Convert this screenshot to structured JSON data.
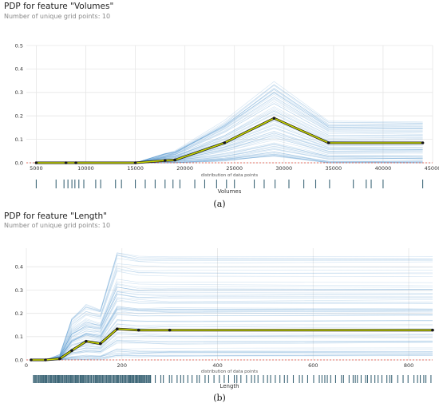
{
  "chart_data": [
    {
      "type": "line",
      "title": "PDP for feature \"Volumes\"",
      "subtitle": "Number of unique grid points: 10",
      "distribution_label": "distribution of data points",
      "xlabel": "Volumes",
      "caption": "(a)",
      "xlim": [
        4000,
        45000
      ],
      "ylim": [
        0,
        0.5
      ],
      "xticks": [
        5000,
        10000,
        15000,
        20000,
        25000,
        30000,
        35000,
        40000,
        45000
      ],
      "yticks": [
        0.0,
        0.1,
        0.2,
        0.3,
        0.4,
        0.5
      ],
      "grid": true,
      "zero_line": true,
      "series": [
        {
          "x": [
            5000,
            8000,
            9000,
            15000,
            18000,
            19000,
            24000,
            29000,
            34500,
            44000
          ],
          "values": [
            0.0,
            0.0,
            0.0,
            0.0,
            0.01,
            0.012,
            0.085,
            0.19,
            0.085,
            0.085
          ]
        }
      ],
      "ice_band": {
        "low": [
          0.0,
          0.0,
          0.0,
          0.0,
          0.0,
          0.0,
          0.01,
          0.03,
          0.0,
          0.0
        ],
        "high": [
          0.0,
          0.0,
          0.0,
          0.0,
          0.04,
          0.05,
          0.18,
          0.35,
          0.18,
          0.18
        ]
      },
      "rug": [
        5000,
        7000,
        7800,
        8200,
        8600,
        8900,
        9300,
        9800,
        11000,
        11500,
        13000,
        13600,
        15000,
        16000,
        17000,
        18000,
        18800,
        19500,
        21000,
        22000,
        23200,
        24200,
        25000,
        27000,
        28000,
        29100,
        30500,
        32000,
        33200,
        34600,
        37000,
        38300,
        38800,
        40000,
        44000
      ]
    },
    {
      "type": "line",
      "title": "PDP for feature \"Length\"",
      "subtitle": "Number of unique grid points: 10",
      "distribution_label": "distribution of data points",
      "xlabel": "Length",
      "caption": "(b)",
      "xlim": [
        0,
        850
      ],
      "ylim": [
        0,
        0.48
      ],
      "xticks": [
        0,
        200,
        400,
        600,
        800
      ],
      "yticks": [
        0.0,
        0.1,
        0.2,
        0.3,
        0.4
      ],
      "grid": true,
      "zero_line": true,
      "series": [
        {
          "x": [
            10,
            40,
            70,
            95,
            125,
            155,
            190,
            235,
            300,
            850
          ],
          "values": [
            0.0,
            0.0,
            0.005,
            0.04,
            0.08,
            0.07,
            0.133,
            0.128,
            0.128,
            0.128
          ]
        }
      ],
      "ice_band": {
        "low": [
          0.0,
          0.0,
          0.0,
          0.0,
          0.0,
          0.0,
          0.01,
          0.01,
          0.01,
          0.01
        ],
        "high": [
          0.0,
          0.0,
          0.02,
          0.18,
          0.24,
          0.22,
          0.47,
          0.45,
          0.45,
          0.45
        ]
      },
      "rug_range": [
        15,
        850
      ],
      "rug_dense_range": [
        15,
        260
      ]
    }
  ]
}
